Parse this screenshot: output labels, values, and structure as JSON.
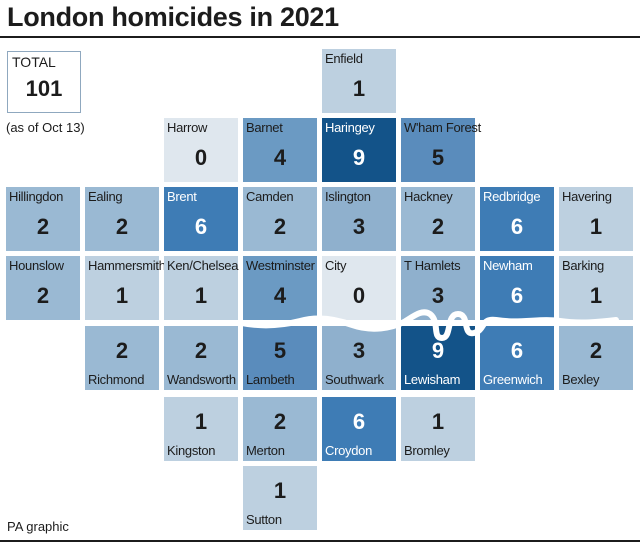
{
  "title": "London homicides in 2021",
  "total": {
    "label": "TOTAL",
    "value": "101",
    "note": "(as of Oct 13)"
  },
  "credit": "PA graphic",
  "legend_colors": {
    "c0": "#dfe7ee",
    "c1": "#bdd0e0",
    "c2": "#9ab9d3",
    "c3": "#8fb0cd",
    "c4": "#6b9ac3",
    "c5": "#5a8cbc",
    "c6": "#3e7cb5",
    "c9": "#135389"
  },
  "boroughs": [
    {
      "name": "Enfield",
      "value": "1"
    },
    {
      "name": "Harrow",
      "value": "0"
    },
    {
      "name": "Barnet",
      "value": "4"
    },
    {
      "name": "Haringey",
      "value": "9"
    },
    {
      "name": "W'ham Forest",
      "value": "5"
    },
    {
      "name": "Hillingdon",
      "value": "2"
    },
    {
      "name": "Ealing",
      "value": "2"
    },
    {
      "name": "Brent",
      "value": "6"
    },
    {
      "name": "Camden",
      "value": "2"
    },
    {
      "name": "Islington",
      "value": "3"
    },
    {
      "name": "Hackney",
      "value": "2"
    },
    {
      "name": "Redbridge",
      "value": "6"
    },
    {
      "name": "Havering",
      "value": "1"
    },
    {
      "name": "Hounslow",
      "value": "2"
    },
    {
      "name": "Hammersmith",
      "value": "1"
    },
    {
      "name": "Ken/Chelsea",
      "value": "1"
    },
    {
      "name": "Westminster",
      "value": "4"
    },
    {
      "name": "City",
      "value": "0"
    },
    {
      "name": "T Hamlets",
      "value": "3"
    },
    {
      "name": "Newham",
      "value": "6"
    },
    {
      "name": "Barking",
      "value": "1"
    },
    {
      "name": "Richmond",
      "value": "2"
    },
    {
      "name": "Wandsworth",
      "value": "2"
    },
    {
      "name": "Lambeth",
      "value": "5"
    },
    {
      "name": "Southwark",
      "value": "3"
    },
    {
      "name": "Lewisham",
      "value": "9"
    },
    {
      "name": "Greenwich",
      "value": "6"
    },
    {
      "name": "Bexley",
      "value": "2"
    },
    {
      "name": "Kingston",
      "value": "1"
    },
    {
      "name": "Merton",
      "value": "2"
    },
    {
      "name": "Croydon",
      "value": "6"
    },
    {
      "name": "Bromley",
      "value": "1"
    },
    {
      "name": "Sutton",
      "value": "1"
    }
  ]
}
